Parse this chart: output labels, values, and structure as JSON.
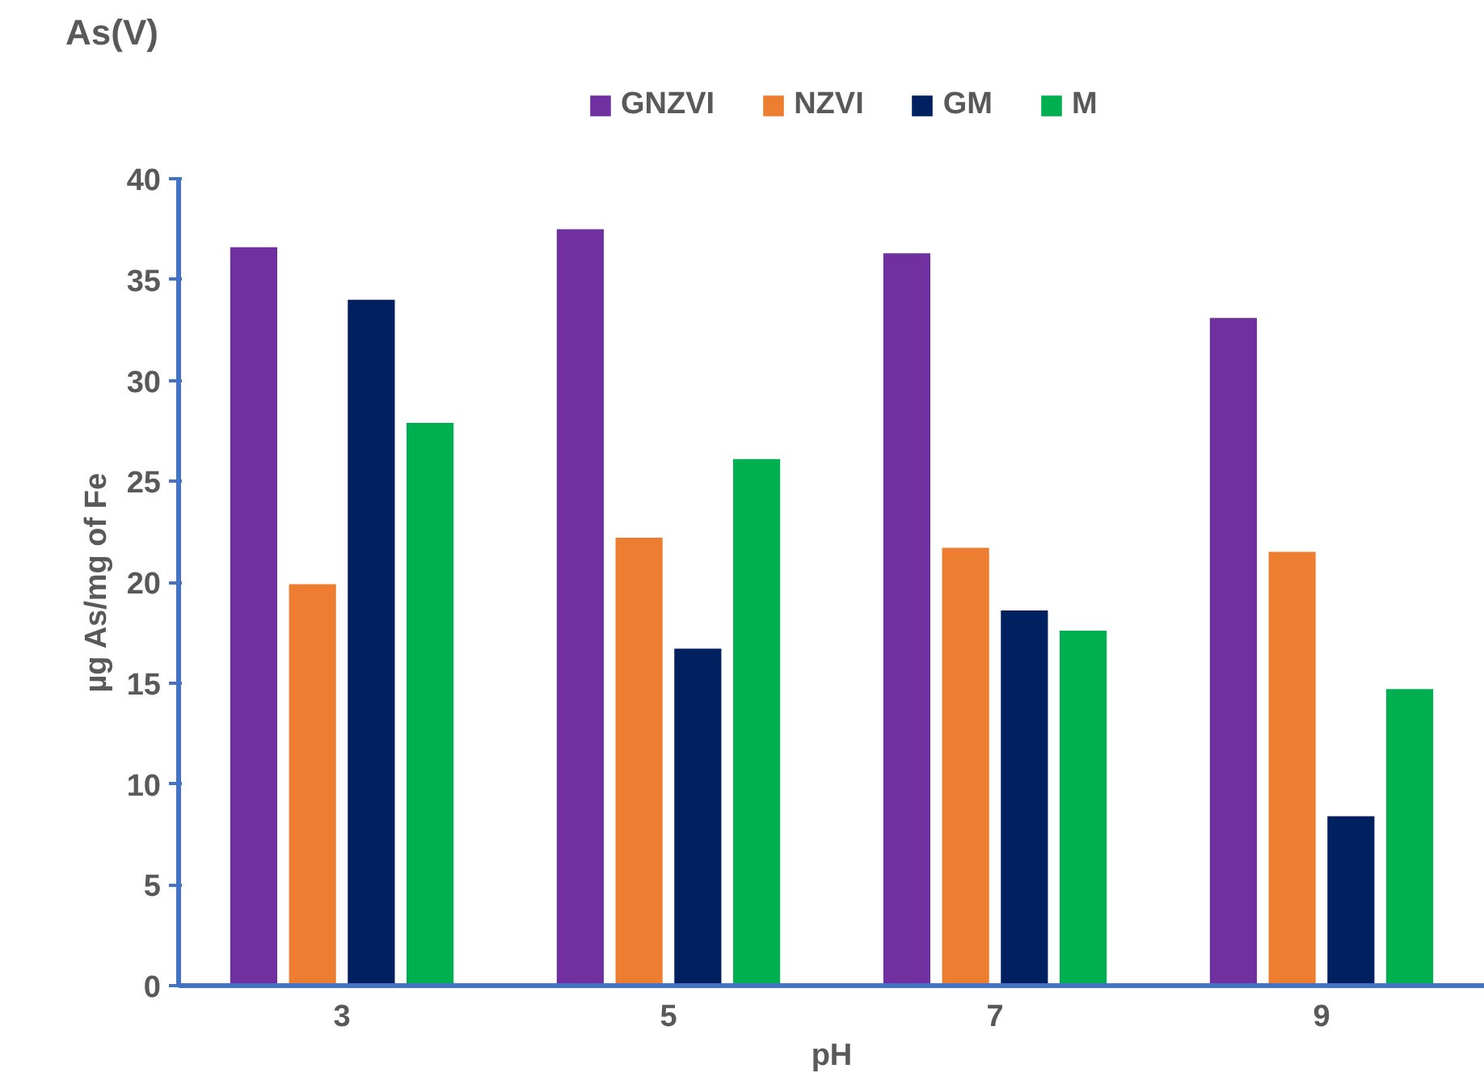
{
  "chart_data": {
    "type": "bar",
    "title": "As(V)",
    "xlabel": "pH",
    "ylabel": "µg As/mg of Fe",
    "categories": [
      "3",
      "5",
      "7",
      "9"
    ],
    "series": [
      {
        "name": "GNZVI",
        "color": "#7030a0",
        "values": [
          36.6,
          37.5,
          36.3,
          33.1
        ]
      },
      {
        "name": "NZVI",
        "color": "#ed7d31",
        "values": [
          19.9,
          22.2,
          21.7,
          21.5
        ]
      },
      {
        "name": "GM",
        "color": "#002060",
        "values": [
          34.0,
          16.7,
          18.6,
          8.4
        ]
      },
      {
        "name": "M",
        "color": "#00b050",
        "values": [
          27.9,
          26.1,
          17.6,
          14.7
        ]
      }
    ],
    "ylim": [
      0,
      40
    ],
    "yticks": [
      0,
      5,
      10,
      15,
      20,
      25,
      30,
      35,
      40
    ],
    "grid": false,
    "legend": "top"
  }
}
